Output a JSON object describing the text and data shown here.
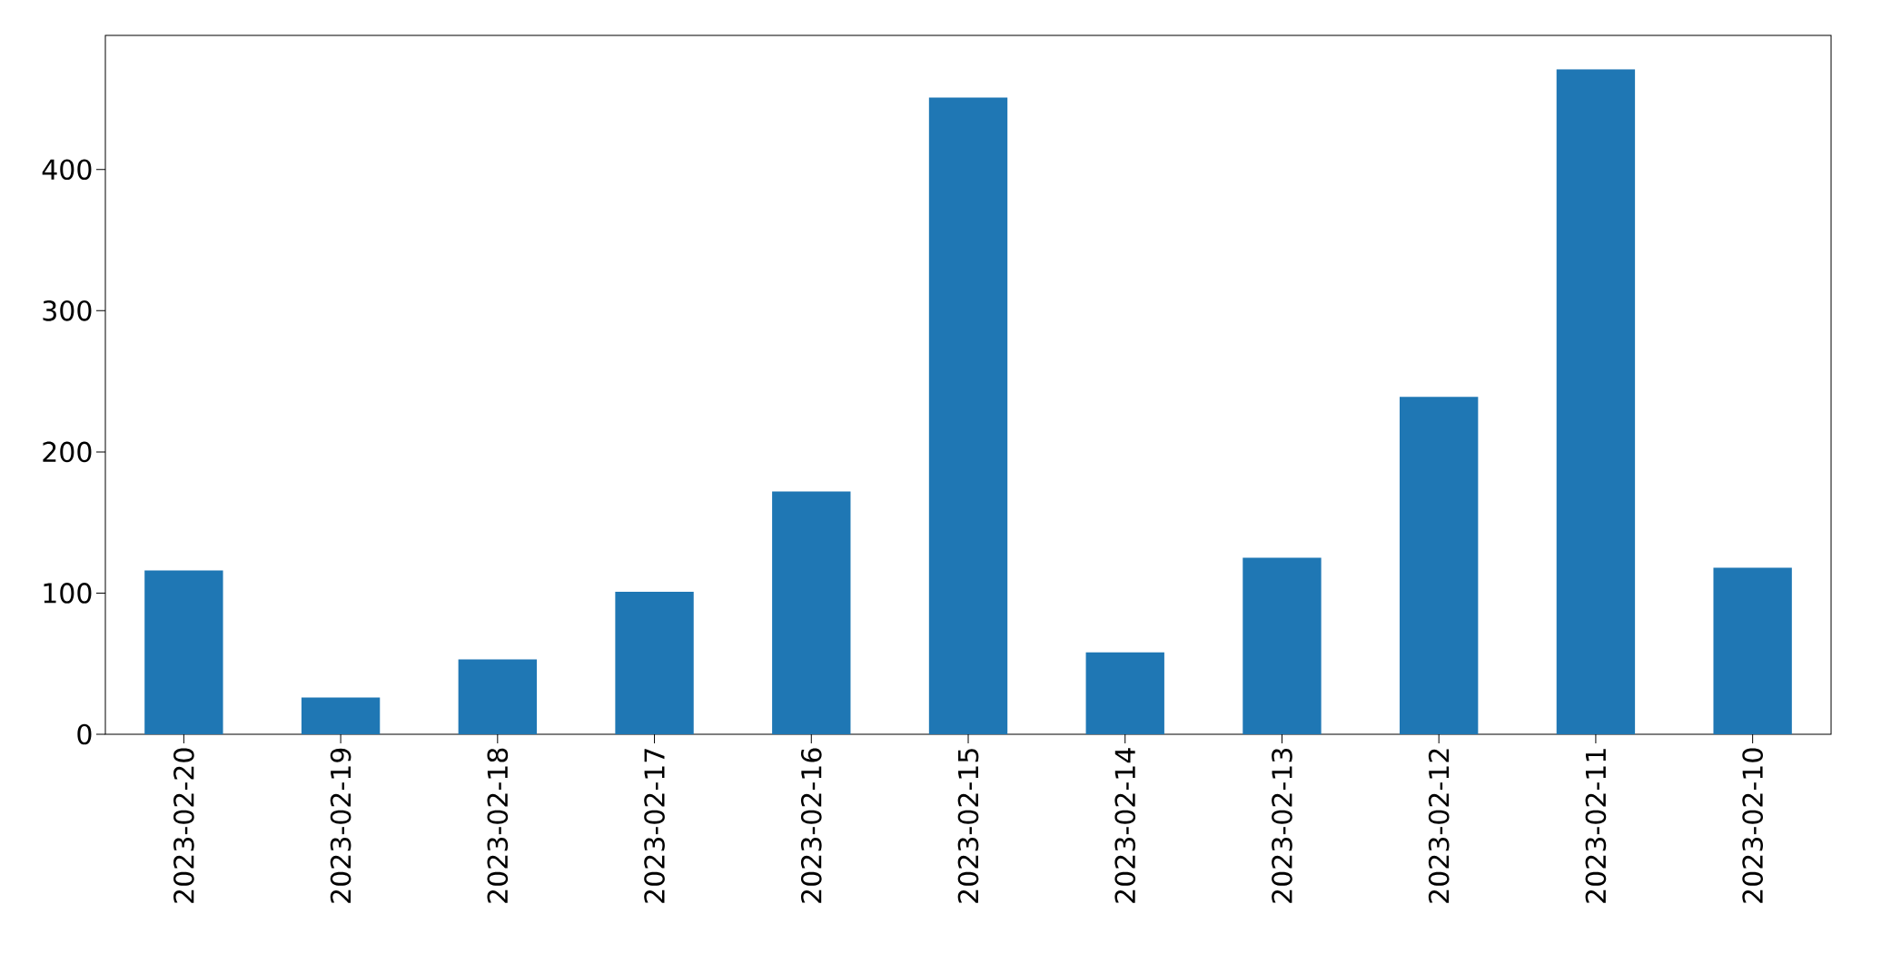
{
  "chart_data": {
    "type": "bar",
    "categories": [
      "2023-02-20",
      "2023-02-19",
      "2023-02-18",
      "2023-02-17",
      "2023-02-16",
      "2023-02-15",
      "2023-02-14",
      "2023-02-13",
      "2023-02-12",
      "2023-02-11",
      "2023-02-10"
    ],
    "values": [
      116,
      26,
      53,
      101,
      172,
      451,
      58,
      125,
      239,
      471,
      118
    ],
    "color": "#1f77b4",
    "ylim": [
      0,
      495
    ],
    "yticks": [
      0,
      100,
      200,
      300,
      400
    ],
    "grid": false
  }
}
